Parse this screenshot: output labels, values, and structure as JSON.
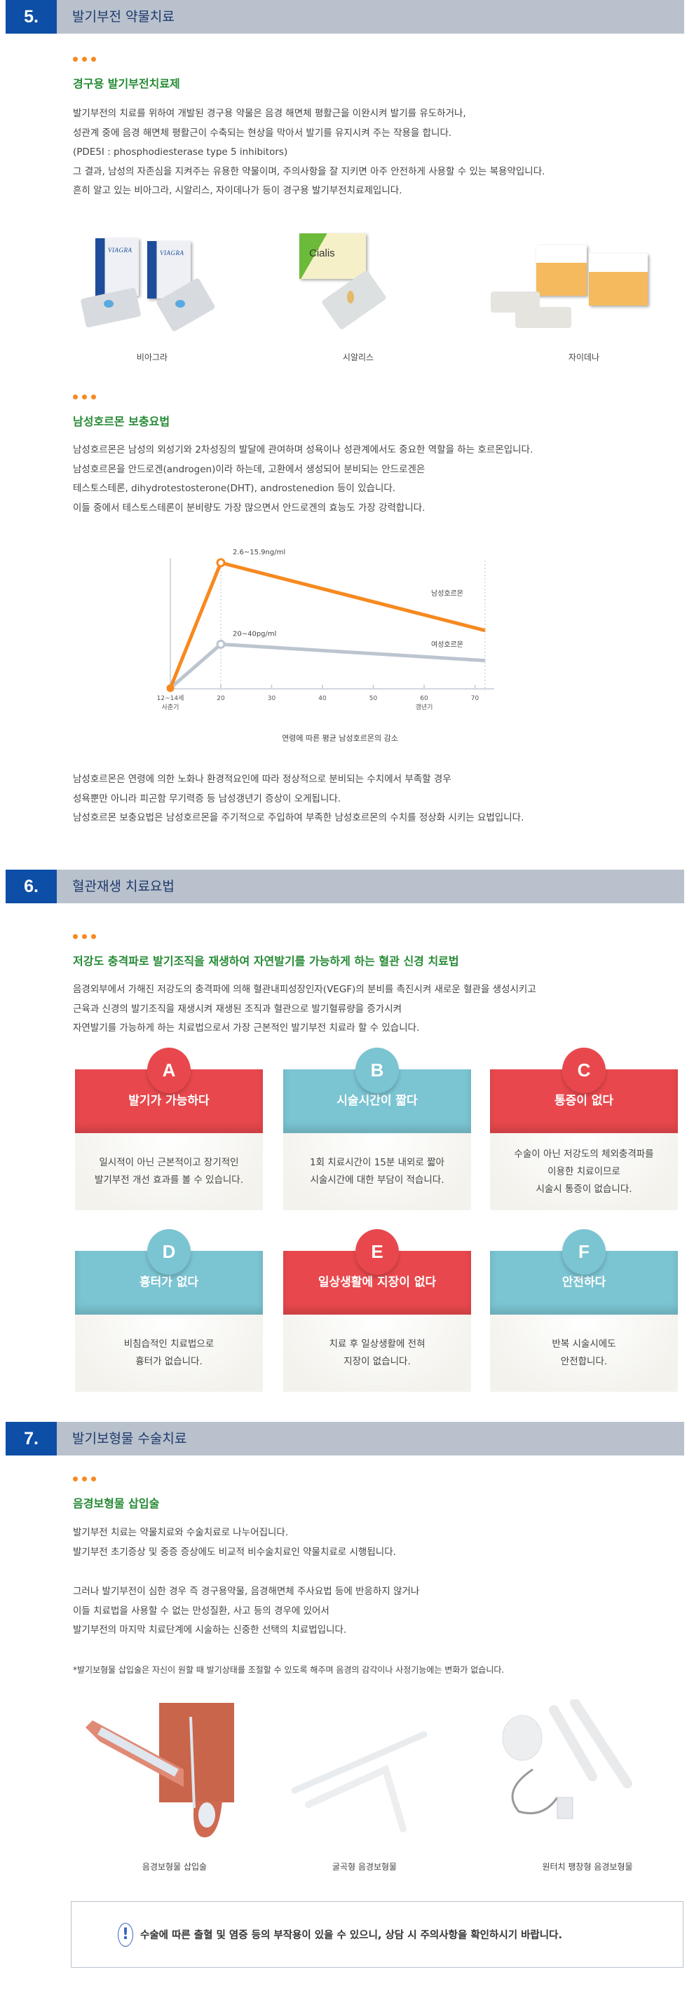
{
  "section5": {
    "number": "5.",
    "title": "발기부전 약물치료",
    "oral": {
      "subtitle": "경구용 발기부전치료제",
      "lines": [
        "발기부전의 치료를 위하여 개발된 경구용 약물은 음경 해면체 평활근을 이완시켜 발기를 유도하거나,",
        "성관계 중에 음경 해면체 평활근이 수축되는 현상을 막아서 발기를 유지시켜 주는 작용을 합니다.",
        "(PDE5I : phosphodiesterase type 5 inhibitors)",
        "그 결과, 남성의 자존심을 지켜주는 유용한 약물이며, 주의사항을 잘 지키면 아주 안전하게 사용할 수 있는 복용약입니다.",
        "흔히 알고 있는 비아그라, 시알리스, 자이데나가 등이 경구용 발기부전치료제입니다."
      ],
      "drugs": [
        {
          "caption": "비아그라",
          "brand_text": "VIAGRA"
        },
        {
          "caption": "시알리스",
          "brand_text": "Cialis"
        },
        {
          "caption": "자이데나",
          "brand_text": "자이데나"
        }
      ]
    },
    "hormone": {
      "subtitle": "남성호르몬 보충요법",
      "lines": [
        "남성호르몬은 남성의 외성기와 2차성징의 발달에 관여하며 성욕이나 성관계에서도 중요한 역할을 하는 호르몬입니다.",
        "남성호르몬을 안드로겐(androgen)이라 하는데, 고환에서 생성되어 분비되는 안드로겐은",
        "테스토스테론, dihydrotestosterone(DHT), androstenedion 등이 있습니다.",
        "이들 중에서 테스토스테론이 분비량도 가장 많으면서 안드로겐의 효능도 가장 강력합니다."
      ],
      "after_lines": [
        "남성호르몬은 연령에 의한 노화나 환경적요인에 따라 정상적으로 분비되는 수치에서 부족할 경우",
        "성욕뿐만 아니라 피곤함 무기력증 등 남성갱년기 증상이 오게됩니다.",
        "남성호르몬 보충요법은 남성호르몬을 주기적으로 주입하여 부족한 남성호르몬의 수치를 정상화 시키는 요법입니다."
      ]
    }
  },
  "chart_data": {
    "type": "line",
    "title": "연령에 따른 평균 남성호르몬의 감소",
    "x_ticks": [
      {
        "label": "12~14세",
        "sub": "사춘기"
      },
      {
        "label": "20",
        "sub": ""
      },
      {
        "label": "30",
        "sub": ""
      },
      {
        "label": "40",
        "sub": ""
      },
      {
        "label": "50",
        "sub": ""
      },
      {
        "label": "60",
        "sub": "갱년기"
      },
      {
        "label": "70",
        "sub": ""
      }
    ],
    "y_axis_labels": false,
    "series": [
      {
        "name": "남성호르몬",
        "color": "#f7891f",
        "points": [
          {
            "x": "12~14세",
            "y": 0
          },
          {
            "x": 20,
            "y": 100
          },
          {
            "x": 72,
            "y": 46
          }
        ],
        "peak_label": "2.6~15.9ng/ml"
      },
      {
        "name": "여성호르몬",
        "color": "#bcc5cf",
        "points": [
          {
            "x": "12~14세",
            "y": 0
          },
          {
            "x": 20,
            "y": 35
          },
          {
            "x": 72,
            "y": 22
          }
        ],
        "peak_label": "20~40pg/ml"
      }
    ]
  },
  "section6": {
    "number": "6.",
    "title": "혈관재생 치료요법",
    "subtitle": "저강도 충격파로 발기조직을 재생하여 자연발기를 가능하게 하는 혈관 신경 치료법",
    "lines": [
      "음경외부에서 가해진 저강도의 충격파에 의해 혈관내피성장인자(VEGF)의 분비를 촉진시켜 새로운 혈관을 생성시키고",
      "근육과 신경의 발기조직을 재생시켜 재생된 조직과 혈관으로 발기혈류량을 증가시켜",
      "자연발기를 가능하게 하는 치료법으로서 가장 근본적인 발기부전 치료라 할 수 있습니다."
    ],
    "colors": {
      "red": "#e8484d",
      "teal": "#7bc4d2"
    },
    "cards": [
      {
        "letter": "A",
        "color": "red",
        "title": "발기가 가능하다",
        "lines": [
          "일시적이 아닌 근본적이고 장기적인",
          "발기부전 개선 효과를 볼 수 있습니다."
        ]
      },
      {
        "letter": "B",
        "color": "teal",
        "title": "시술시간이 짧다",
        "lines": [
          "1회 치료시간이 15분 내외로 짧아",
          "시술시간에 대한 부담이 적습니다."
        ]
      },
      {
        "letter": "C",
        "color": "red",
        "title": "통증이 없다",
        "lines": [
          "수술이 아닌 저강도의 체외충격파를",
          "이용한 치료이므로",
          "시술시 통증이 없습니다."
        ]
      },
      {
        "letter": "D",
        "color": "teal",
        "title": "흉터가 없다",
        "lines": [
          "비침습적인 치료법으로",
          "흉터가 없습니다."
        ]
      },
      {
        "letter": "E",
        "color": "red",
        "title": "일상생활에 지장이 없다",
        "lines": [
          "치료 후 일상생활에 전혀",
          "지장이 없습니다."
        ]
      },
      {
        "letter": "F",
        "color": "teal",
        "title": "안전하다",
        "lines": [
          "반복 시술시에도",
          "안전합니다."
        ]
      }
    ]
  },
  "section7": {
    "number": "7.",
    "title": "발기보형물 수술치료",
    "subtitle": "음경보형물 삽입술",
    "lines_a": [
      "발기부전 치료는 약물치료와 수술치료로 나누어집니다.",
      "발기부전 초기증상 및 중증 증상에도 비교적 비수술치료인 약물치료로 시행됩니다."
    ],
    "lines_b": [
      "그러나 발기부전이 심한 경우 즉 경구용약물, 음경해면체 주사요법 등에 반응하지 않거나",
      "이들 치료법을 사용할 수 없는 만성질환, 사고 등의 경우에 있어서",
      "발기부전의 마지막 치료단계에 시술하는 신중한 선택의 치료법입니다."
    ],
    "note": "*발기보형물 삽입술은 자신이 원할 때 발기상태를 조절할 수 있도록 해주며 음경의 감각이나 사정기능에는 변화가 없습니다.",
    "images": [
      {
        "caption": "음경보형물 삽입술"
      },
      {
        "caption": "굴곡형 음경보형물"
      },
      {
        "caption": "원터치 팽창형 음경보형물"
      }
    ],
    "notice": {
      "icon": "!",
      "text": "수술에 따른 출혈 및 염증 등의 부작용이 있을 수 있으니, 상담 시 주의사항을 확인하시기 바랍니다."
    }
  }
}
